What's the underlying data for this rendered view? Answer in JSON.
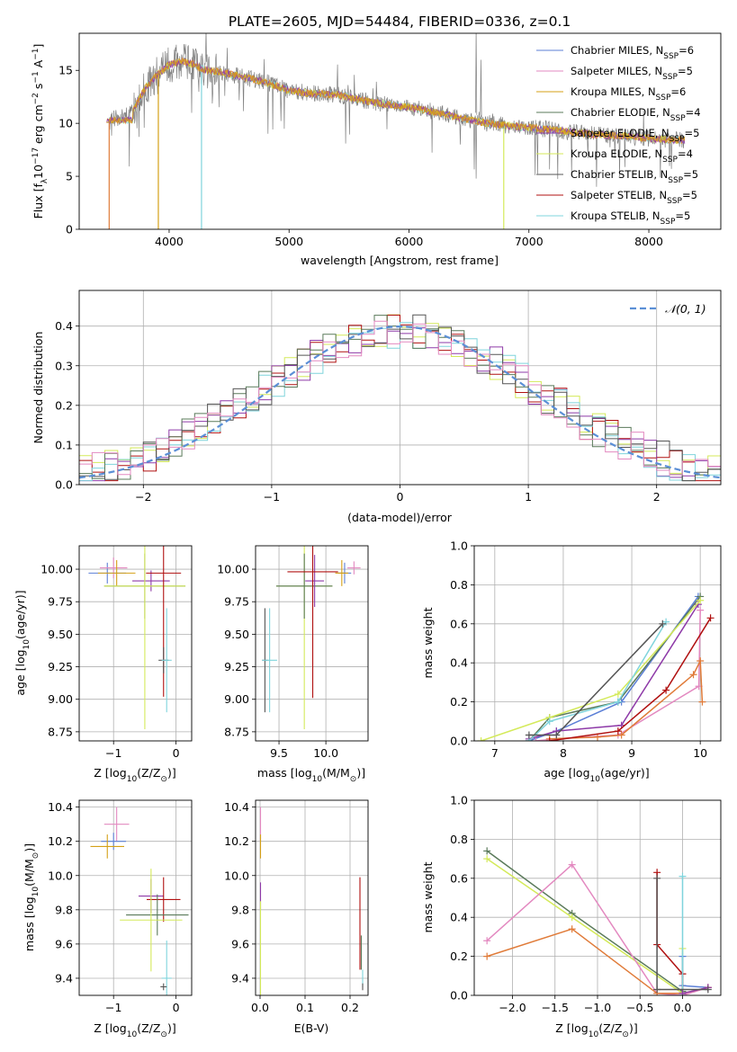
{
  "title": "PLATE=2605, MJD=54484, FIBERID=0336, z=0.1",
  "colors": {
    "chabrier_miles": "#5b7fd6",
    "salpeter_miles": "#e389c0",
    "kroupa_miles": "#d4a017",
    "chabrier_elodie": "#5a7a5a",
    "salpeter_elodie": "#8e3aa8",
    "kroupa_elodie": "#d4ea5a",
    "chabrier_stelib": "#555555",
    "salpeter_stelib": "#b01010",
    "kroupa_stelib": "#7fd4dc",
    "orange": "#e07b39",
    "gray_data": "#808080",
    "normal": "#5b8fd6"
  },
  "legend": [
    {
      "key": "chabrier_miles",
      "label": "Chabrier MILES, N",
      "sub": "SSP",
      "tail": "=6"
    },
    {
      "key": "salpeter_miles",
      "label": "Salpeter MILES, N",
      "sub": "SSP",
      "tail": "=5"
    },
    {
      "key": "kroupa_miles",
      "label": "Kroupa MILES, N",
      "sub": "SSP",
      "tail": "=6"
    },
    {
      "key": "chabrier_elodie",
      "label": "Chabrier ELODIE, N",
      "sub": "SSP",
      "tail": "=4"
    },
    {
      "key": "salpeter_elodie",
      "label": "Salpeter ELODIE, N",
      "sub": "SSP",
      "tail": "=5"
    },
    {
      "key": "kroupa_elodie",
      "label": "Kroupa ELODIE, N",
      "sub": "SSP",
      "tail": "=4"
    },
    {
      "key": "chabrier_stelib",
      "label": "Chabrier STELIB, N",
      "sub": "SSP",
      "tail": "=5"
    },
    {
      "key": "salpeter_stelib",
      "label": "Salpeter STELIB, N",
      "sub": "SSP",
      "tail": "=5"
    },
    {
      "key": "kroupa_stelib",
      "label": "Kroupa STELIB, N",
      "sub": "SSP",
      "tail": "=5"
    }
  ],
  "chart_data": [
    {
      "id": "spectrum",
      "type": "line",
      "xlabel": "wavelength [Angstrom, rest frame]",
      "ylabel": "Flux [f",
      "ylabel_sub": "λ",
      "ylabel_mid": "10",
      "ylabel_exp1": "−17",
      "ylabel_after": " erg cm",
      "ylabel_exp2": "−2",
      "ylabel_s": " s",
      "ylabel_exp3": "−1",
      "ylabel_end": " A",
      "ylabel_exp4": "−1",
      "ylabel_close": "]",
      "xlim": [
        3250,
        8600
      ],
      "ylim": [
        0,
        18.5
      ],
      "xticks": [
        "4000",
        "5000",
        "6000",
        "7000",
        "8000"
      ],
      "yticks": [
        "0",
        "5",
        "10",
        "15"
      ],
      "grid": false,
      "legend_loc": "upper right",
      "data_envelope": {
        "x": [
          3500,
          3600,
          3700,
          3800,
          3900,
          4000,
          4100,
          4200,
          4300,
          4400,
          4600,
          4800,
          5000,
          5200,
          5400,
          5600,
          5800,
          6000,
          6200,
          6400,
          6600,
          6800,
          7000,
          7200,
          7400,
          7600,
          7800,
          8000,
          8200,
          8300
        ],
        "y": [
          10.4,
          10.5,
          11.2,
          13.3,
          14.6,
          15.5,
          15.9,
          15.6,
          15.0,
          14.9,
          14.4,
          13.9,
          13.1,
          12.8,
          12.7,
          12.2,
          11.8,
          11.5,
          11.1,
          10.6,
          10.1,
          9.8,
          9.6,
          9.4,
          9.1,
          8.9,
          8.8,
          8.6,
          8.4,
          8.4
        ]
      },
      "model_dropouts": {
        "orange": 3500,
        "kroupa_miles": 3910,
        "kroupa_stelib": 4270,
        "kroupa_elodie": 6790,
        "salpeter_stelib": 7410
      }
    },
    {
      "id": "residuals",
      "type": "step",
      "xlabel": "(data-model)/error",
      "ylabel": "Normed distribution",
      "xlim": [
        -2.5,
        2.5
      ],
      "ylim": [
        0,
        0.49
      ],
      "xticks": [
        "−2",
        "−1",
        "0",
        "1",
        "2"
      ],
      "yticks": [
        "0.0",
        "0.1",
        "0.2",
        "0.3",
        "0.4"
      ],
      "grid": true,
      "legend_label": "𝒩(0, 1)",
      "legend_loc": "upper right",
      "bin_width": 0.1
    },
    {
      "id": "age_vs_Z",
      "type": "errorbar",
      "xlabel": "Z [log",
      "xlabel_sub": "10",
      "xlabel_rest": "(Z/Z",
      "xlabel_sun": "⊙",
      "xlabel_close": ")]",
      "ylabel": "age  [log",
      "ylabel_sub": "10",
      "ylabel_rest": "(age/yr)]",
      "xlim": [
        -1.55,
        0.25
      ],
      "ylim": [
        8.68,
        10.18
      ],
      "xticks": [
        "−1",
        "0"
      ],
      "yticks": [
        "8.75",
        "9.00",
        "9.25",
        "9.50",
        "9.75",
        "10.00"
      ],
      "points": [
        {
          "c": "chabrier_miles",
          "x": -1.1,
          "xe": 0.3,
          "y": 9.97,
          "ye": 0.08
        },
        {
          "c": "salpeter_miles",
          "x": -1.0,
          "xe": 0.22,
          "y": 10.01,
          "ye": 0.08
        },
        {
          "c": "kroupa_miles",
          "x": -0.95,
          "xe": 0.3,
          "y": 9.97,
          "ye": 0.1
        },
        {
          "c": "chabrier_elodie",
          "x": -0.5,
          "xe": 0.65,
          "y": 9.87,
          "ye": 0.25
        },
        {
          "c": "salpeter_elodie",
          "x": -0.4,
          "xe": 0.3,
          "y": 9.91,
          "ye": 0.08
        },
        {
          "c": "kroupa_elodie",
          "x": -0.5,
          "xe": 0.65,
          "y": 9.87,
          "ye": 1.1
        },
        {
          "c": "salpeter_stelib",
          "x": -0.2,
          "xe": 0.28,
          "y": 9.97,
          "ye": 0.95
        },
        {
          "c": "chabrier_stelib",
          "x": -0.2,
          "xe": 0.08,
          "y": 9.3,
          "ye": 0.1
        },
        {
          "c": "kroupa_stelib",
          "x": -0.15,
          "xe": 0.08,
          "y": 9.3,
          "ye": 0.4
        }
      ]
    },
    {
      "id": "age_vs_mass",
      "type": "errorbar",
      "xlabel": "mass [log",
      "xlabel_sub": "10",
      "xlabel_rest": "(M/M",
      "xlabel_sun": "⊙",
      "xlabel_close": ")]",
      "xlim": [
        9.25,
        10.45
      ],
      "ylim": [
        8.68,
        10.18
      ],
      "xticks": [
        "9.5",
        "10.0"
      ],
      "yticks": [
        "8.75",
        "9.00",
        "9.25",
        "9.50",
        "9.75",
        "10.00"
      ],
      "points": [
        {
          "c": "chabrier_stelib",
          "x": 9.35,
          "xe": 0.03,
          "y": 9.3,
          "ye": 0.4
        },
        {
          "c": "kroupa_stelib",
          "x": 9.4,
          "xe": 0.08,
          "y": 9.3,
          "ye": 0.4
        },
        {
          "c": "kroupa_elodie",
          "x": 9.77,
          "xe": 0.3,
          "y": 9.87,
          "ye": 1.1
        },
        {
          "c": "chabrier_elodie",
          "x": 9.77,
          "xe": 0.3,
          "y": 9.87,
          "ye": 0.25
        },
        {
          "c": "salpeter_elodie",
          "x": 9.88,
          "xe": 0.1,
          "y": 9.91,
          "ye": 0.2
        },
        {
          "c": "salpeter_stelib",
          "x": 9.86,
          "xe": 0.27,
          "y": 9.98,
          "ye": 0.97
        },
        {
          "c": "chabrier_miles",
          "x": 10.2,
          "xe": 0.07,
          "y": 9.97,
          "ye": 0.08
        },
        {
          "c": "kroupa_miles",
          "x": 10.17,
          "xe": 0.07,
          "y": 9.97,
          "ye": 0.1
        },
        {
          "c": "salpeter_miles",
          "x": 10.3,
          "xe": 0.07,
          "y": 10.01,
          "ye": 0.05
        }
      ]
    },
    {
      "id": "weight_vs_age",
      "type": "line",
      "xlabel": "age  [log",
      "xlabel_sub": "10",
      "xlabel_rest": "(age/yr)]",
      "ylabel": "mass weight",
      "xlim": [
        6.7,
        10.3
      ],
      "ylim": [
        0,
        1.0
      ],
      "xticks": [
        "7",
        "8",
        "9",
        "10"
      ],
      "yticks": [
        "0.0",
        "0.2",
        "0.4",
        "0.6",
        "0.8",
        "1.0"
      ],
      "series": [
        {
          "c": "chabrier_miles",
          "x": [
            7.5,
            7.9,
            8.85,
            9.97
          ],
          "y": [
            0.0,
            0.05,
            0.2,
            0.74
          ]
        },
        {
          "c": "salpeter_miles",
          "x": [
            7.6,
            7.9,
            8.8,
            9.98,
            10.0
          ],
          "y": [
            0.0,
            0.01,
            0.03,
            0.28,
            0.67
          ]
        },
        {
          "c": "orange",
          "x": [
            7.8,
            8.5,
            8.85,
            9.9,
            10.0,
            10.03
          ],
          "y": [
            0.01,
            0.02,
            0.03,
            0.34,
            0.41,
            0.2
          ]
        },
        {
          "c": "chabrier_elodie",
          "x": [
            7.5,
            7.8,
            8.8,
            10.0
          ],
          "y": [
            0.0,
            0.12,
            0.2,
            0.74
          ]
        },
        {
          "c": "salpeter_elodie",
          "x": [
            7.5,
            7.9,
            8.85,
            9.97
          ],
          "y": [
            0.01,
            0.05,
            0.08,
            0.7
          ]
        },
        {
          "c": "kroupa_elodie",
          "x": [
            6.8,
            7.8,
            8.8,
            10.0
          ],
          "y": [
            0.0,
            0.12,
            0.24,
            0.72
          ]
        },
        {
          "c": "salpeter_stelib",
          "x": [
            7.8,
            8.8,
            9.5,
            10.15
          ],
          "y": [
            0.0,
            0.05,
            0.26,
            0.63
          ]
        },
        {
          "c": "kroupa_stelib",
          "x": [
            7.5,
            7.8,
            8.8,
            9.5
          ],
          "y": [
            0.0,
            0.1,
            0.2,
            0.61
          ]
        },
        {
          "c": "chabrier_stelib",
          "x": [
            7.5,
            7.9,
            9.45
          ],
          "y": [
            0.03,
            0.03,
            0.6
          ]
        }
      ]
    },
    {
      "id": "mass_vs_Z",
      "type": "errorbar",
      "xlabel": "Z [log",
      "xlabel_sub": "10",
      "xlabel_rest": "(Z/Z",
      "xlabel_sun": "⊙",
      "xlabel_close": ")]",
      "ylabel": "mass [log",
      "ylabel_sub": "10",
      "ylabel_rest": "(M/M",
      "ylabel_sun": "⊙",
      "ylabel_close": ")]",
      "xlim": [
        -1.55,
        0.25
      ],
      "ylim": [
        9.3,
        10.44
      ],
      "xticks": [
        "−1",
        "0"
      ],
      "yticks": [
        "9.4",
        "9.6",
        "9.8",
        "10.0",
        "10.2",
        "10.4"
      ],
      "points": [
        {
          "c": "salpeter_miles",
          "x": -0.95,
          "xe": 0.2,
          "y": 10.3,
          "ye": 0.1
        },
        {
          "c": "chabrier_miles",
          "x": -1.0,
          "xe": 0.2,
          "y": 10.2,
          "ye": 0.05
        },
        {
          "c": "kroupa_miles",
          "x": -1.1,
          "xe": 0.27,
          "y": 10.17,
          "ye": 0.07
        },
        {
          "c": "salpeter_elodie",
          "x": -0.4,
          "xe": 0.2,
          "y": 9.88,
          "ye": 0.1
        },
        {
          "c": "salpeter_stelib",
          "x": -0.2,
          "xe": 0.27,
          "y": 9.86,
          "ye": 0.13
        },
        {
          "c": "chabrier_elodie",
          "x": -0.3,
          "xe": 0.5,
          "y": 9.77,
          "ye": 0.12
        },
        {
          "c": "kroupa_elodie",
          "x": -0.4,
          "xe": 0.5,
          "y": 9.74,
          "ye": 0.3
        },
        {
          "c": "kroupa_stelib",
          "x": -0.15,
          "xe": 0.08,
          "y": 9.4,
          "ye": 0.22
        },
        {
          "c": "chabrier_stelib",
          "x": -0.2,
          "xe": 0.05,
          "y": 9.35,
          "ye": 0.02
        }
      ]
    },
    {
      "id": "mass_vs_ebv",
      "type": "errorbar",
      "xlabel": "E(B-V)",
      "xlim": [
        -0.01,
        0.24
      ],
      "ylim": [
        9.3,
        10.44
      ],
      "xticks": [
        "0.0",
        "0.1",
        "0.2"
      ],
      "yticks": [
        "9.4",
        "9.6",
        "9.8",
        "10.0",
        "10.2",
        "10.4"
      ],
      "points": [
        {
          "c": "salpeter_miles",
          "x": 0.001,
          "xe": 0.0,
          "y": 10.3,
          "ye": 0.1
        },
        {
          "c": "kroupa_miles",
          "x": 0.001,
          "xe": 0.0,
          "y": 10.17,
          "ye": 0.07
        },
        {
          "c": "salpeter_elodie",
          "x": 0.001,
          "xe": 0.0,
          "y": 9.88,
          "ye": 0.08
        },
        {
          "c": "kroupa_elodie",
          "x": 0.001,
          "xe": 0.0,
          "y": 9.55,
          "ye": 0.3
        },
        {
          "c": "salpeter_stelib",
          "x": 0.222,
          "xe": 0.0,
          "y": 9.72,
          "ye": 0.27
        },
        {
          "c": "chabrier_elodie",
          "x": 0.225,
          "xe": 0.0,
          "y": 9.55,
          "ye": 0.1
        },
        {
          "c": "kroupa_stelib",
          "x": 0.228,
          "xe": 0.0,
          "y": 9.4,
          "ye": 0.05
        },
        {
          "c": "chabrier_stelib",
          "x": 0.228,
          "xe": 0.0,
          "y": 9.35,
          "ye": 0.02
        }
      ]
    },
    {
      "id": "weight_vs_Z",
      "type": "line",
      "xlabel": "Z [log",
      "xlabel_sub": "10",
      "xlabel_rest": "(Z/Z",
      "xlabel_sun": "⊙",
      "xlabel_close": ")]",
      "ylabel": "mass weight",
      "xlim": [
        -2.45,
        0.45
      ],
      "ylim": [
        0,
        1.0
      ],
      "xticks": [
        "−2.0",
        "−1.5",
        "−1.0",
        "−0.5",
        "0.0"
      ],
      "yticks": [
        "0.0",
        "0.2",
        "0.4",
        "0.6",
        "0.8",
        "1.0"
      ],
      "series": [
        {
          "c": "chabrier_elodie",
          "x": [
            -2.3,
            -1.3,
            0.0
          ],
          "y": [
            0.74,
            0.42,
            0.02
          ]
        },
        {
          "c": "kroupa_elodie",
          "x": [
            -2.3,
            -1.3,
            0.0,
            0.0
          ],
          "y": [
            0.7,
            0.4,
            0.01,
            0.24
          ]
        },
        {
          "c": "chabrier_miles",
          "x": [
            0.0,
            0.0,
            0.3
          ],
          "y": [
            0.2,
            0.05,
            0.04
          ]
        },
        {
          "c": "salpeter_miles",
          "x": [
            -2.3,
            -1.3,
            -0.3,
            0.0,
            0.3
          ],
          "y": [
            0.28,
            0.67,
            0.01,
            0.0,
            0.04
          ]
        },
        {
          "c": "orange",
          "x": [
            -2.3,
            -1.3,
            -0.3,
            0.0,
            0.3
          ],
          "y": [
            0.2,
            0.34,
            0.01,
            0.01,
            0.04
          ]
        },
        {
          "c": "salpeter_stelib",
          "x": [
            -0.3,
            -0.3,
            0.0,
            0.0
          ],
          "y": [
            0.63,
            0.26,
            0.11,
            0.01
          ]
        },
        {
          "c": "kroupa_stelib",
          "x": [
            0.0,
            0.0
          ],
          "y": [
            0.61,
            0.0
          ]
        },
        {
          "c": "salpeter_elodie",
          "x": [
            0.0,
            0.3
          ],
          "y": [
            0.01,
            0.04
          ]
        },
        {
          "c": "chabrier_stelib",
          "x": [
            -0.3,
            -0.3,
            0.3
          ],
          "y": [
            0.6,
            0.03,
            0.03
          ]
        }
      ]
    }
  ]
}
